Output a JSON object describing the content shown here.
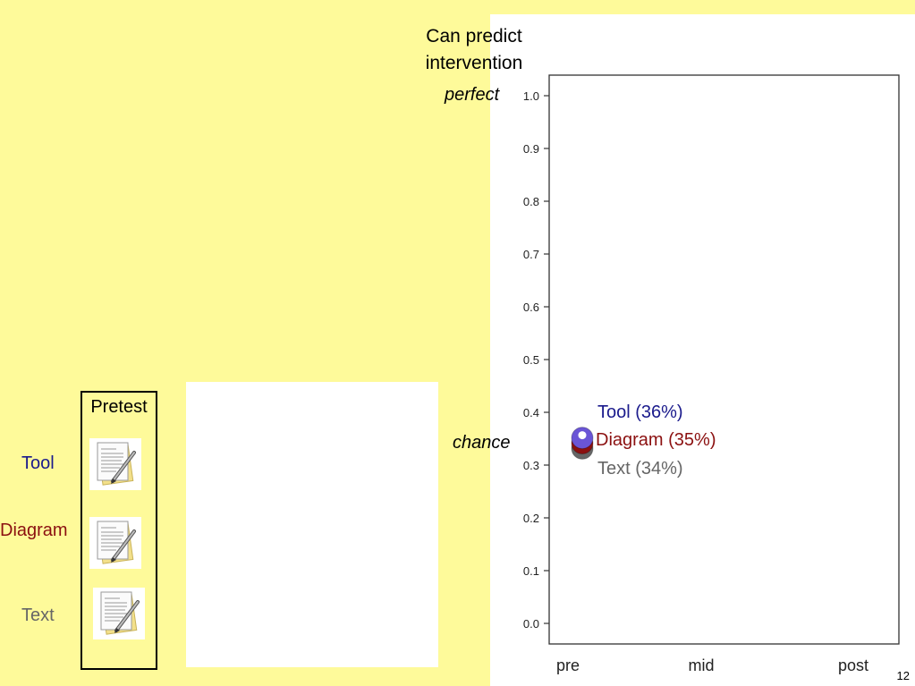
{
  "slide": {
    "page_number": "12",
    "ylabel_line1": "Can predict",
    "ylabel_line2": "intervention",
    "annotation_perfect": "perfect",
    "annotation_chance": "chance",
    "pretest_label": "Pretest",
    "rows": [
      {
        "label": "Tool",
        "color": "#1a1a8c",
        "icon": "document-pen-icon"
      },
      {
        "label": "Diagram",
        "color": "#8b1010",
        "icon": "document-pen-icon"
      },
      {
        "label": "Text",
        "color": "#666666",
        "icon": "document-pen-icon"
      }
    ]
  },
  "colors": {
    "background": "#fefa9a",
    "tool": "#1a1a8c",
    "diagram": "#8b1010",
    "text": "#666666",
    "marker_tool": "#6a55d6"
  },
  "chart_data": {
    "type": "scatter",
    "categories": [
      "pre",
      "mid",
      "post"
    ],
    "y_ticks": [
      "0.0",
      "0.1",
      "0.2",
      "0.3",
      "0.4",
      "0.5",
      "0.6",
      "0.7",
      "0.8",
      "0.9",
      "1.0"
    ],
    "ylim": [
      0,
      1
    ],
    "grid": false,
    "series": [
      {
        "name": "Tool",
        "label": "Tool (36%)",
        "values": [
          0.36,
          null,
          null
        ],
        "color": "#6a55d6"
      },
      {
        "name": "Diagram",
        "label": "Diagram (35%)",
        "values": [
          0.35,
          null,
          null
        ],
        "color": "#8b1010"
      },
      {
        "name": "Text",
        "label": "Text (34%)",
        "values": [
          0.34,
          null,
          null
        ],
        "color": "#666666"
      }
    ]
  }
}
